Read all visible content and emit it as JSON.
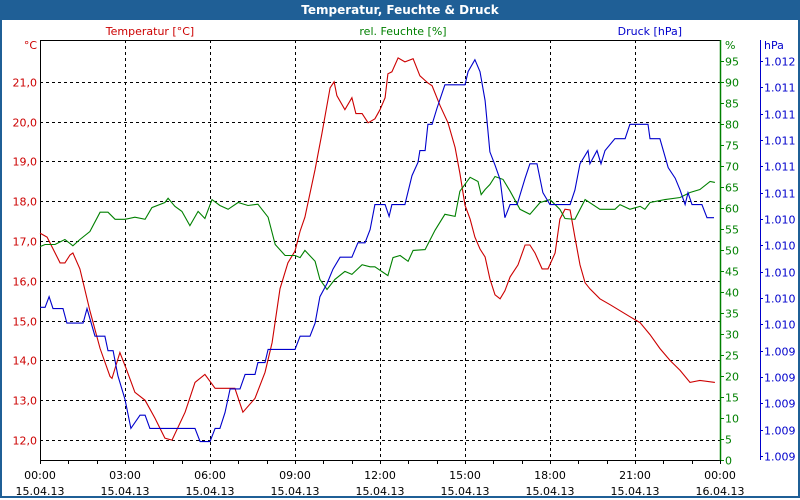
{
  "window": {
    "title": "Temperatur, Feuchte & Druck"
  },
  "colors": {
    "temp": "#cc0000",
    "hum": "#008000",
    "press": "#0000cc",
    "title_bg": "#1f5f96"
  },
  "chart_data": {
    "type": "line",
    "title": "Temperatur, Feuchte & Druck",
    "x_ticks": [
      {
        "time": "00:00",
        "date": "15.04.13"
      },
      {
        "time": "03:00",
        "date": "15.04.13"
      },
      {
        "time": "06:00",
        "date": "15.04.13"
      },
      {
        "time": "09:00",
        "date": "15.04.13"
      },
      {
        "time": "12:00",
        "date": "15.04.13"
      },
      {
        "time": "15:00",
        "date": "15.04.13"
      },
      {
        "time": "18:00",
        "date": "15.04.13"
      },
      {
        "time": "21:00",
        "date": "15.04.13"
      },
      {
        "time": "00:00",
        "date": "16.04.13"
      }
    ],
    "xlim_hours": [
      0,
      24
    ],
    "grid": true,
    "axes": {
      "temp": {
        "legend": "Temperatur [°C]",
        "unit": "°C",
        "ylim": [
          11.5,
          22.05
        ],
        "ticks": [
          "12,0",
          "13,0",
          "14,0",
          "15,0",
          "16,0",
          "17,0",
          "18,0",
          "19,0",
          "20,0",
          "21,0"
        ]
      },
      "hum": {
        "legend": "rel. Feuchte [%]",
        "unit": "%",
        "ylim": [
          0,
          100
        ],
        "ticks": [
          "0",
          "5",
          "10",
          "15",
          "20",
          "25",
          "30",
          "35",
          "40",
          "45",
          "50",
          "55",
          "60",
          "65",
          "70",
          "75",
          "80",
          "85",
          "90",
          "95"
        ]
      },
      "press": {
        "legend": "Druck [hPa]",
        "unit": "hPa",
        "ylim": [
          1008.57,
          1011.76
        ],
        "ticks": [
          "1.009",
          "1.009",
          "1.009",
          "1.009",
          "1.009",
          "1.010",
          "1.010",
          "1.010",
          "1.010",
          "1.010",
          "1.011",
          "1.011",
          "1.011",
          "1.011",
          "1.011",
          "1.012"
        ]
      }
    },
    "series": [
      {
        "name": "Temperatur [°C]",
        "axis": "temp",
        "points": [
          [
            0,
            17.2
          ],
          [
            0.25,
            17.1
          ],
          [
            0.71,
            16.45
          ],
          [
            0.88,
            16.45
          ],
          [
            1.06,
            16.65
          ],
          [
            1.16,
            16.7
          ],
          [
            1.41,
            16.3
          ],
          [
            1.76,
            15.25
          ],
          [
            2.12,
            14.3
          ],
          [
            2.47,
            13.6
          ],
          [
            2.54,
            13.55
          ],
          [
            2.82,
            14.2
          ],
          [
            3.04,
            13.8
          ],
          [
            3.35,
            13.2
          ],
          [
            3.71,
            13.0
          ],
          [
            4.06,
            12.55
          ],
          [
            4.41,
            12.05
          ],
          [
            4.66,
            12.0
          ],
          [
            5.12,
            12.7
          ],
          [
            5.47,
            13.45
          ],
          [
            5.82,
            13.65
          ],
          [
            6.18,
            13.3
          ],
          [
            6.88,
            13.3
          ],
          [
            7.16,
            12.7
          ],
          [
            7.59,
            13.05
          ],
          [
            7.94,
            13.7
          ],
          [
            8.19,
            14.45
          ],
          [
            8.47,
            15.8
          ],
          [
            8.75,
            16.45
          ],
          [
            9.0,
            16.75
          ],
          [
            9.18,
            17.25
          ],
          [
            9.35,
            17.6
          ],
          [
            9.71,
            18.8
          ],
          [
            9.95,
            19.7
          ],
          [
            10.24,
            20.85
          ],
          [
            10.38,
            21.0
          ],
          [
            10.48,
            20.65
          ],
          [
            10.76,
            20.3
          ],
          [
            11.01,
            20.6
          ],
          [
            11.15,
            20.2
          ],
          [
            11.37,
            20.2
          ],
          [
            11.58,
            19.97
          ],
          [
            11.82,
            20.07
          ],
          [
            12.0,
            20.3
          ],
          [
            12.18,
            20.6
          ],
          [
            12.28,
            21.2
          ],
          [
            12.42,
            21.25
          ],
          [
            12.64,
            21.6
          ],
          [
            12.88,
            21.5
          ],
          [
            13.17,
            21.58
          ],
          [
            13.41,
            21.15
          ],
          [
            13.69,
            20.97
          ],
          [
            13.84,
            20.9
          ],
          [
            14.12,
            20.4
          ],
          [
            14.4,
            19.97
          ],
          [
            14.65,
            19.35
          ],
          [
            14.82,
            18.7
          ],
          [
            15.0,
            17.9
          ],
          [
            15.18,
            17.55
          ],
          [
            15.35,
            17.1
          ],
          [
            15.53,
            16.8
          ],
          [
            15.71,
            16.6
          ],
          [
            15.88,
            16.05
          ],
          [
            16.06,
            15.65
          ],
          [
            16.24,
            15.55
          ],
          [
            16.41,
            15.75
          ],
          [
            16.59,
            16.1
          ],
          [
            16.87,
            16.4
          ],
          [
            17.12,
            16.9
          ],
          [
            17.29,
            16.9
          ],
          [
            17.47,
            16.7
          ],
          [
            17.72,
            16.3
          ],
          [
            17.93,
            16.3
          ],
          [
            18.18,
            16.7
          ],
          [
            18.35,
            17.55
          ],
          [
            18.53,
            17.8
          ],
          [
            18.71,
            17.78
          ],
          [
            18.88,
            17.1
          ],
          [
            19.06,
            16.4
          ],
          [
            19.24,
            15.95
          ],
          [
            19.41,
            15.8
          ],
          [
            19.76,
            15.55
          ],
          [
            20.12,
            15.4
          ],
          [
            20.47,
            15.25
          ],
          [
            20.82,
            15.1
          ],
          [
            21.18,
            14.95
          ],
          [
            21.53,
            14.65
          ],
          [
            21.88,
            14.3
          ],
          [
            22.24,
            14.0
          ],
          [
            22.59,
            13.75
          ],
          [
            22.94,
            13.45
          ],
          [
            23.29,
            13.5
          ],
          [
            23.82,
            13.45
          ]
        ]
      },
      {
        "name": "rel. Feuchte [%]",
        "axis": "hum",
        "points": [
          [
            0,
            50.8
          ],
          [
            0.18,
            51.3
          ],
          [
            0.53,
            51.3
          ],
          [
            0.88,
            52.5
          ],
          [
            1.16,
            51
          ],
          [
            1.41,
            52.5
          ],
          [
            1.76,
            54.4
          ],
          [
            2.12,
            59
          ],
          [
            2.4,
            59
          ],
          [
            2.65,
            57.3
          ],
          [
            3.0,
            57.3
          ],
          [
            3.35,
            57.8
          ],
          [
            3.71,
            57.3
          ],
          [
            3.95,
            60.1
          ],
          [
            4.41,
            61.3
          ],
          [
            4.52,
            62.3
          ],
          [
            4.76,
            60.4
          ],
          [
            5.01,
            59.2
          ],
          [
            5.29,
            55.8
          ],
          [
            5.58,
            59.2
          ],
          [
            5.82,
            57.5
          ],
          [
            6.07,
            62
          ],
          [
            6.35,
            60.6
          ],
          [
            6.64,
            59.7
          ],
          [
            6.99,
            61.3
          ],
          [
            7.34,
            60.6
          ],
          [
            7.69,
            60.9
          ],
          [
            8.05,
            57.8
          ],
          [
            8.3,
            51.3
          ],
          [
            8.65,
            48.7
          ],
          [
            9.0,
            48.7
          ],
          [
            9.18,
            48.2
          ],
          [
            9.35,
            49.9
          ],
          [
            9.71,
            47.3
          ],
          [
            9.88,
            43
          ],
          [
            10.13,
            40.6
          ],
          [
            10.41,
            43
          ],
          [
            10.76,
            44.9
          ],
          [
            11.01,
            44.2
          ],
          [
            11.37,
            46.5
          ],
          [
            11.65,
            46
          ],
          [
            11.82,
            46
          ],
          [
            12.28,
            43.9
          ],
          [
            12.46,
            48.2
          ],
          [
            12.71,
            48.7
          ],
          [
            12.99,
            47.3
          ],
          [
            13.17,
            49.9
          ],
          [
            13.59,
            50.1
          ],
          [
            13.94,
            54.7
          ],
          [
            14.29,
            58.5
          ],
          [
            14.65,
            58
          ],
          [
            14.82,
            64
          ],
          [
            15.18,
            67.3
          ],
          [
            15.46,
            66.3
          ],
          [
            15.57,
            63.2
          ],
          [
            15.71,
            64.4
          ],
          [
            15.88,
            65.6
          ],
          [
            16.06,
            67.5
          ],
          [
            16.34,
            66.8
          ],
          [
            16.59,
            64
          ],
          [
            16.94,
            59.7
          ],
          [
            17.29,
            58.5
          ],
          [
            17.65,
            61.3
          ],
          [
            18.0,
            62
          ],
          [
            18.35,
            59.7
          ],
          [
            18.53,
            57.5
          ],
          [
            18.88,
            57.3
          ],
          [
            19.24,
            62
          ],
          [
            19.76,
            59.7
          ],
          [
            20.29,
            59.7
          ],
          [
            20.47,
            60.8
          ],
          [
            20.82,
            59.7
          ],
          [
            21.18,
            60.4
          ],
          [
            21.35,
            59.7
          ],
          [
            21.53,
            61.3
          ],
          [
            22.06,
            62
          ],
          [
            22.59,
            62.5
          ],
          [
            22.94,
            63.7
          ],
          [
            23.29,
            64.4
          ],
          [
            23.65,
            66.3
          ],
          [
            23.82,
            66.1
          ]
        ]
      },
      {
        "name": "Druck [hPa]",
        "axis": "press",
        "points": [
          [
            0,
            1009.73
          ],
          [
            0.18,
            1009.73
          ],
          [
            0.32,
            1009.81
          ],
          [
            0.46,
            1009.72
          ],
          [
            0.81,
            1009.72
          ],
          [
            0.95,
            1009.61
          ],
          [
            1.52,
            1009.61
          ],
          [
            1.66,
            1009.72
          ],
          [
            1.94,
            1009.51
          ],
          [
            2.29,
            1009.51
          ],
          [
            2.4,
            1009.4
          ],
          [
            2.58,
            1009.4
          ],
          [
            2.75,
            1009.21
          ],
          [
            3.0,
            1009.03
          ],
          [
            3.21,
            1008.81
          ],
          [
            3.53,
            1008.91
          ],
          [
            3.71,
            1008.91
          ],
          [
            3.88,
            1008.81
          ],
          [
            5.47,
            1008.81
          ],
          [
            5.65,
            1008.71
          ],
          [
            6.0,
            1008.71
          ],
          [
            6.18,
            1008.81
          ],
          [
            6.35,
            1008.81
          ],
          [
            6.53,
            1008.93
          ],
          [
            6.71,
            1009.11
          ],
          [
            7.06,
            1009.11
          ],
          [
            7.24,
            1009.22
          ],
          [
            7.59,
            1009.22
          ],
          [
            7.69,
            1009.31
          ],
          [
            7.94,
            1009.31
          ],
          [
            8.05,
            1009.41
          ],
          [
            9.0,
            1009.41
          ],
          [
            9.18,
            1009.51
          ],
          [
            9.53,
            1009.51
          ],
          [
            9.71,
            1009.61
          ],
          [
            9.88,
            1009.81
          ],
          [
            10.13,
            1009.91
          ],
          [
            10.34,
            1010.02
          ],
          [
            10.59,
            1010.11
          ],
          [
            11.01,
            1010.11
          ],
          [
            11.22,
            1010.22
          ],
          [
            11.47,
            1010.22
          ],
          [
            11.65,
            1010.32
          ],
          [
            11.82,
            1010.51
          ],
          [
            12.18,
            1010.51
          ],
          [
            12.32,
            1010.42
          ],
          [
            12.42,
            1010.51
          ],
          [
            12.88,
            1010.51
          ],
          [
            13.13,
            1010.73
          ],
          [
            13.34,
            1010.83
          ],
          [
            13.41,
            1010.92
          ],
          [
            13.59,
            1010.92
          ],
          [
            13.69,
            1011.12
          ],
          [
            13.84,
            1011.12
          ],
          [
            14.01,
            1011.24
          ],
          [
            14.29,
            1011.42
          ],
          [
            15.0,
            1011.42
          ],
          [
            15.11,
            1011.52
          ],
          [
            15.35,
            1011.61
          ],
          [
            15.53,
            1011.52
          ],
          [
            15.71,
            1011.3
          ],
          [
            15.88,
            1010.91
          ],
          [
            16.06,
            1010.81
          ],
          [
            16.24,
            1010.7
          ],
          [
            16.41,
            1010.41
          ],
          [
            16.59,
            1010.51
          ],
          [
            16.84,
            1010.51
          ],
          [
            17.12,
            1010.71
          ],
          [
            17.29,
            1010.82
          ],
          [
            17.54,
            1010.82
          ],
          [
            17.75,
            1010.6
          ],
          [
            18.0,
            1010.51
          ],
          [
            18.71,
            1010.51
          ],
          [
            18.88,
            1010.62
          ],
          [
            19.06,
            1010.82
          ],
          [
            19.34,
            1010.92
          ],
          [
            19.41,
            1010.82
          ],
          [
            19.66,
            1010.92
          ],
          [
            19.8,
            1010.82
          ],
          [
            19.94,
            1010.92
          ],
          [
            20.29,
            1011.01
          ],
          [
            20.65,
            1011.01
          ],
          [
            20.82,
            1011.12
          ],
          [
            21.46,
            1011.12
          ],
          [
            21.53,
            1011.01
          ],
          [
            21.88,
            1011.01
          ],
          [
            22.17,
            1010.79
          ],
          [
            22.42,
            1010.71
          ],
          [
            22.59,
            1010.62
          ],
          [
            22.77,
            1010.51
          ],
          [
            22.87,
            1010.6
          ],
          [
            23.01,
            1010.51
          ],
          [
            23.36,
            1010.51
          ],
          [
            23.54,
            1010.41
          ],
          [
            23.79,
            1010.41
          ]
        ]
      }
    ]
  }
}
